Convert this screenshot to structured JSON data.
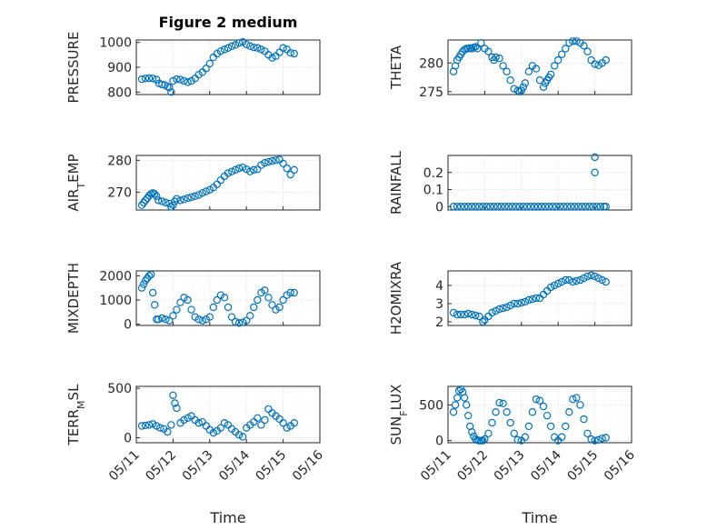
{
  "colors": {
    "series": "#0072BD",
    "axis": "#262626"
  },
  "xshared": {
    "label": "Time",
    "ticks": [
      0,
      1,
      2,
      3,
      4,
      5
    ],
    "ticklabels": [
      "05/11",
      "05/12",
      "05/13",
      "05/14",
      "05/15",
      "05/16"
    ],
    "range": [
      0,
      5
    ]
  },
  "chart_data": [
    {
      "type": "scatter",
      "title": "Figure 2 medium",
      "ylabel": "PRESSURE",
      "ylim": [
        790,
        1010
      ],
      "yticks": [
        800,
        900,
        1000
      ],
      "yticklabels": [
        "800",
        "900",
        "1000"
      ],
      "grid": true,
      "x": [
        0.15,
        0.25,
        0.35,
        0.45,
        0.55,
        0.62,
        0.7,
        0.78,
        0.85,
        0.9,
        0.95,
        1.0,
        1.1,
        1.2,
        1.3,
        1.4,
        1.5,
        1.6,
        1.7,
        1.8,
        1.9,
        2.0,
        2.1,
        2.2,
        2.3,
        2.4,
        2.5,
        2.6,
        2.7,
        2.8,
        2.9,
        3.0,
        3.1,
        3.2,
        3.3,
        3.4,
        3.5,
        3.6,
        3.7,
        3.8,
        3.9,
        4.0,
        4.1,
        4.2,
        4.3
      ],
      "y": [
        852,
        855,
        856,
        855,
        850,
        835,
        830,
        828,
        822,
        818,
        800,
        845,
        852,
        850,
        845,
        840,
        845,
        855,
        870,
        880,
        895,
        915,
        940,
        955,
        965,
        972,
        978,
        985,
        990,
        998,
        1002,
        992,
        985,
        980,
        978,
        972,
        965,
        950,
        938,
        945,
        960,
        978,
        972,
        958,
        955
      ]
    },
    {
      "type": "scatter",
      "ylabel": "THETA",
      "ylim": [
        274.5,
        284
      ],
      "yticks": [
        275,
        280
      ],
      "yticklabels": [
        "275",
        "280"
      ],
      "grid": true,
      "x": [
        0.15,
        0.2,
        0.25,
        0.3,
        0.35,
        0.4,
        0.45,
        0.5,
        0.55,
        0.6,
        0.65,
        0.7,
        0.75,
        0.8,
        0.9,
        1.0,
        1.1,
        1.2,
        1.25,
        1.3,
        1.4,
        1.5,
        1.6,
        1.7,
        1.8,
        1.9,
        1.95,
        2.0,
        2.05,
        2.1,
        2.2,
        2.3,
        2.4,
        2.5,
        2.6,
        2.65,
        2.7,
        2.75,
        2.8,
        2.9,
        3.0,
        3.1,
        3.2,
        3.3,
        3.4,
        3.5,
        3.6,
        3.7,
        3.8,
        3.9,
        4.0,
        4.1,
        4.2,
        4.3
      ],
      "y": [
        278.5,
        279.5,
        280.5,
        281.0,
        281.5,
        282.0,
        282.3,
        282.5,
        282.5,
        282.6,
        282.5,
        282.7,
        282.8,
        282.5,
        283.5,
        282.5,
        282.0,
        281.0,
        280.5,
        281.0,
        280.8,
        279.5,
        278.5,
        277.0,
        275.5,
        275.2,
        275.0,
        275.2,
        275.8,
        276.5,
        278.5,
        279.5,
        279.0,
        277.0,
        275.8,
        276.5,
        277.0,
        277.5,
        278.0,
        279.5,
        280.5,
        281.5,
        282.5,
        283.5,
        283.8,
        283.8,
        283.5,
        283.0,
        282.0,
        280.5,
        279.8,
        279.6,
        280.0,
        280.5
      ]
    },
    {
      "type": "scatter",
      "ylabel": "AIR_TEMP",
      "ylim": [
        264.5,
        281.5
      ],
      "yticks": [
        270,
        280
      ],
      "yticklabels": [
        "270",
        "280"
      ],
      "grid": true,
      "x": [
        0.15,
        0.2,
        0.25,
        0.3,
        0.35,
        0.4,
        0.45,
        0.5,
        0.55,
        0.6,
        0.7,
        0.8,
        0.9,
        0.95,
        1.0,
        1.05,
        1.1,
        1.2,
        1.3,
        1.4,
        1.5,
        1.6,
        1.7,
        1.8,
        1.9,
        2.0,
        2.1,
        2.2,
        2.3,
        2.4,
        2.5,
        2.6,
        2.7,
        2.8,
        2.9,
        3.0,
        3.1,
        3.2,
        3.3,
        3.4,
        3.5,
        3.6,
        3.7,
        3.8,
        3.9,
        4.0,
        4.1,
        4.2,
        4.3
      ],
      "y": [
        266.0,
        266.8,
        267.5,
        268.2,
        269.0,
        269.5,
        269.8,
        269.5,
        268.8,
        267.5,
        267.2,
        266.8,
        266.5,
        265.5,
        266.0,
        267.2,
        268.0,
        267.5,
        267.8,
        268.2,
        268.5,
        268.8,
        269.2,
        269.8,
        270.3,
        270.8,
        271.5,
        272.5,
        273.8,
        275.0,
        276.0,
        276.5,
        277.0,
        277.5,
        277.8,
        277.2,
        276.5,
        277.0,
        277.2,
        278.5,
        279.2,
        279.5,
        279.8,
        280.0,
        280.2,
        279.0,
        277.5,
        275.5,
        277.0
      ]
    },
    {
      "type": "scatter",
      "ylabel": "RAINFALL",
      "ylim": [
        -0.02,
        0.3
      ],
      "yticks": [
        0,
        0.1,
        0.2
      ],
      "yticklabels": [
        "0",
        "0.1",
        "0.2"
      ],
      "grid": true,
      "x": [
        0.15,
        0.25,
        0.35,
        0.45,
        0.55,
        0.65,
        0.75,
        0.85,
        0.95,
        1.05,
        1.15,
        1.25,
        1.35,
        1.45,
        1.55,
        1.65,
        1.75,
        1.85,
        1.95,
        2.05,
        2.15,
        2.25,
        2.35,
        2.45,
        2.55,
        2.65,
        2.75,
        2.85,
        2.95,
        3.05,
        3.15,
        3.25,
        3.35,
        3.45,
        3.55,
        3.65,
        3.75,
        3.85,
        3.95,
        4.0,
        4.0,
        4.05,
        4.15,
        4.25,
        4.3
      ],
      "y": [
        0,
        0,
        0,
        0,
        0,
        0,
        0,
        0,
        0,
        0,
        0,
        0,
        0,
        0,
        0,
        0,
        0,
        0,
        0,
        0,
        0,
        0,
        0,
        0,
        0,
        0,
        0,
        0,
        0,
        0,
        0,
        0,
        0,
        0,
        0,
        0,
        0,
        0,
        0,
        0.2,
        0.29,
        0,
        0,
        0,
        0
      ]
    },
    {
      "type": "scatter",
      "ylabel": "MIXDEPTH",
      "ylim": [
        -50,
        2200
      ],
      "yticks": [
        0,
        1000,
        2000
      ],
      "yticklabels": [
        "0",
        "1000",
        "2000"
      ],
      "grid": true,
      "x": [
        0.15,
        0.2,
        0.25,
        0.3,
        0.35,
        0.4,
        0.45,
        0.5,
        0.55,
        0.6,
        0.7,
        0.8,
        0.9,
        1.0,
        1.1,
        1.2,
        1.3,
        1.4,
        1.5,
        1.6,
        1.7,
        1.8,
        1.9,
        2.0,
        2.1,
        2.2,
        2.3,
        2.4,
        2.5,
        2.6,
        2.7,
        2.8,
        2.9,
        3.0,
        3.1,
        3.2,
        3.3,
        3.4,
        3.5,
        3.6,
        3.7,
        3.8,
        3.9,
        4.0,
        4.1,
        4.2,
        4.3
      ],
      "y": [
        1500,
        1650,
        1800,
        1900,
        2000,
        2050,
        1300,
        800,
        200,
        200,
        250,
        200,
        150,
        350,
        600,
        900,
        1100,
        1000,
        600,
        300,
        200,
        150,
        200,
        300,
        700,
        1000,
        1200,
        1100,
        700,
        300,
        100,
        50,
        80,
        150,
        350,
        700,
        1000,
        1300,
        1400,
        1100,
        800,
        600,
        700,
        1000,
        1200,
        1300,
        1300
      ]
    },
    {
      "type": "scatter",
      "ylabel": "H2OMIXRA",
      "ylim": [
        1.8,
        4.8
      ],
      "yticks": [
        2,
        3,
        4
      ],
      "yticklabels": [
        "2",
        "3",
        "4"
      ],
      "grid": true,
      "x": [
        0.15,
        0.25,
        0.35,
        0.45,
        0.55,
        0.65,
        0.75,
        0.85,
        0.95,
        1.0,
        1.1,
        1.2,
        1.3,
        1.4,
        1.5,
        1.6,
        1.7,
        1.8,
        1.9,
        2.0,
        2.1,
        2.2,
        2.3,
        2.4,
        2.5,
        2.6,
        2.7,
        2.8,
        2.9,
        3.0,
        3.1,
        3.2,
        3.3,
        3.4,
        3.5,
        3.6,
        3.7,
        3.8,
        3.9,
        4.0,
        4.1,
        4.2,
        4.3
      ],
      "y": [
        2.5,
        2.4,
        2.4,
        2.4,
        2.45,
        2.4,
        2.35,
        2.3,
        2.0,
        2.1,
        2.3,
        2.5,
        2.6,
        2.7,
        2.75,
        2.8,
        2.9,
        3.0,
        3.0,
        3.05,
        3.1,
        3.2,
        3.25,
        3.3,
        3.3,
        3.5,
        3.7,
        3.9,
        4.0,
        4.1,
        4.2,
        4.3,
        4.3,
        4.2,
        4.25,
        4.3,
        4.4,
        4.5,
        4.55,
        4.5,
        4.4,
        4.3,
        4.2
      ]
    },
    {
      "type": "scatter",
      "ylabel": "TERR_MSL",
      "ylim": [
        -50,
        520
      ],
      "yticks": [
        0,
        500
      ],
      "yticklabels": [
        "0",
        "500"
      ],
      "grid": true,
      "x": [
        0.15,
        0.25,
        0.35,
        0.45,
        0.55,
        0.65,
        0.75,
        0.85,
        0.95,
        1.0,
        1.05,
        1.1,
        1.2,
        1.3,
        1.4,
        1.5,
        1.6,
        1.7,
        1.8,
        1.9,
        2.0,
        2.1,
        2.2,
        2.3,
        2.4,
        2.5,
        2.6,
        2.7,
        2.8,
        2.9,
        3.0,
        3.1,
        3.2,
        3.3,
        3.4,
        3.5,
        3.6,
        3.7,
        3.8,
        3.9,
        4.0,
        4.1,
        4.2,
        4.3
      ],
      "y": [
        120,
        125,
        130,
        140,
        120,
        100,
        90,
        60,
        130,
        430,
        350,
        300,
        150,
        180,
        200,
        220,
        180,
        150,
        160,
        120,
        80,
        50,
        70,
        100,
        150,
        130,
        90,
        60,
        30,
        10,
        100,
        130,
        160,
        200,
        130,
        180,
        290,
        250,
        220,
        190,
        150,
        100,
        120,
        150
      ]
    },
    {
      "type": "scatter",
      "ylabel": "SUN_FLUX",
      "ylim": [
        -30,
        760
      ],
      "yticks": [
        0,
        500
      ],
      "yticklabels": [
        "0",
        "500"
      ],
      "grid": true,
      "x": [
        0.15,
        0.2,
        0.25,
        0.3,
        0.35,
        0.4,
        0.45,
        0.5,
        0.55,
        0.6,
        0.65,
        0.7,
        0.75,
        0.8,
        0.85,
        0.9,
        0.95,
        1.0,
        1.1,
        1.2,
        1.3,
        1.4,
        1.5,
        1.6,
        1.7,
        1.8,
        1.9,
        2.0,
        2.1,
        2.2,
        2.3,
        2.4,
        2.5,
        2.6,
        2.7,
        2.8,
        2.9,
        3.0,
        3.1,
        3.2,
        3.3,
        3.4,
        3.5,
        3.6,
        3.7,
        3.8,
        3.9,
        4.0,
        4.1,
        4.2,
        4.3
      ],
      "y": [
        400,
        500,
        600,
        700,
        720,
        680,
        600,
        500,
        350,
        200,
        120,
        60,
        20,
        5,
        0,
        0,
        0,
        20,
        100,
        250,
        400,
        530,
        520,
        400,
        250,
        100,
        10,
        0,
        50,
        200,
        400,
        580,
        560,
        480,
        350,
        200,
        50,
        0,
        50,
        200,
        400,
        580,
        600,
        500,
        300,
        100,
        20,
        0,
        10,
        30,
        40
      ]
    }
  ]
}
